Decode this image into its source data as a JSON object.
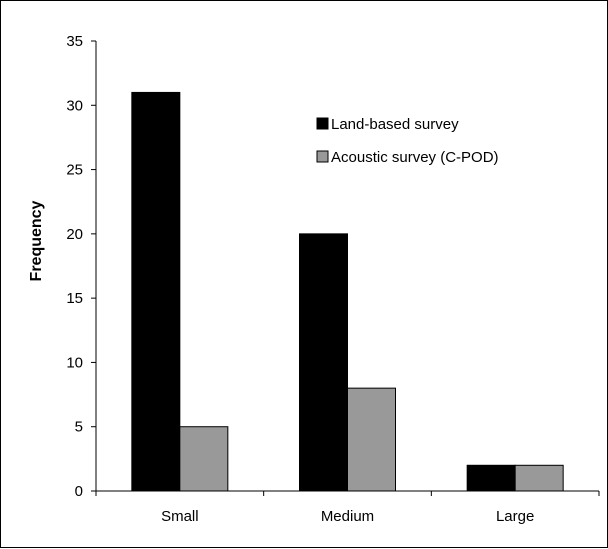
{
  "chart_data": {
    "type": "bar",
    "title": "",
    "xlabel": "",
    "ylabel": "Frequency",
    "categories": [
      "Small",
      "Medium",
      "Large"
    ],
    "ylim": [
      0,
      35
    ],
    "yticks": [
      0,
      5,
      10,
      15,
      20,
      25,
      30,
      35
    ],
    "grid": false,
    "legend_position": "top-right",
    "series": [
      {
        "name": "Land-based survey",
        "color": "#000000",
        "values": [
          31,
          20,
          2
        ]
      },
      {
        "name": "Acoustic survey (C-POD)",
        "color": "#999999",
        "values": [
          5,
          8,
          2
        ]
      }
    ]
  }
}
